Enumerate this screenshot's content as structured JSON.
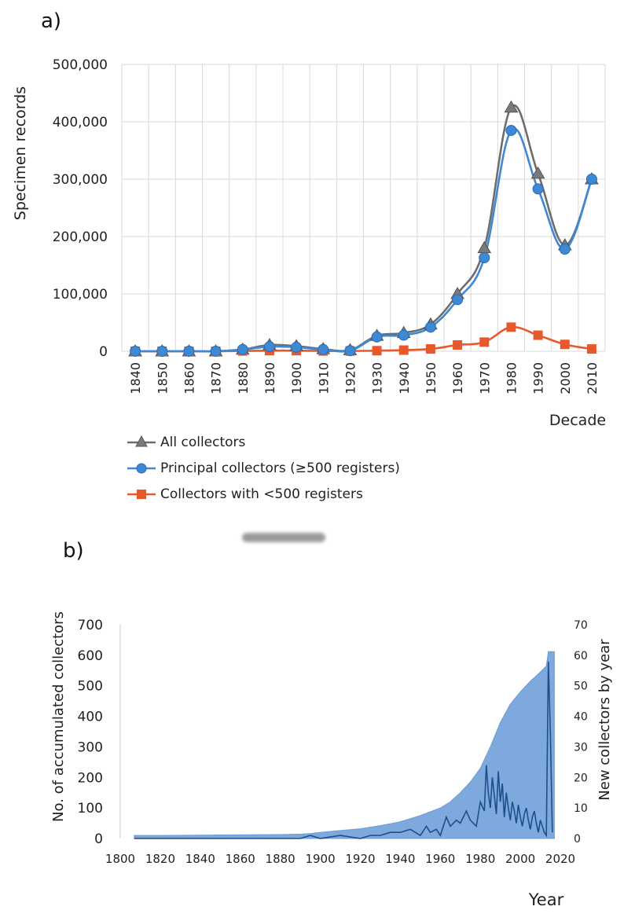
{
  "chart_data": [
    {
      "panel": "a)",
      "type": "line",
      "title": "",
      "xlabel": "Decade",
      "ylabel": "Specimen records",
      "ylim": [
        0,
        500000
      ],
      "yticks": [
        "500,000",
        "400,000",
        "300,000",
        "200,000",
        "100,000",
        "0"
      ],
      "grid": true,
      "categories": [
        "1840",
        "1850",
        "1860",
        "1870",
        "1880",
        "1890",
        "1900",
        "1910",
        "1920",
        "1930",
        "1940",
        "1950",
        "1960",
        "1970",
        "1980",
        "1990",
        "2000",
        "2010"
      ],
      "series": [
        {
          "name": "All collectors",
          "color": "#6d6d6d",
          "marker": "triangle",
          "values": [
            0,
            0,
            0,
            0,
            3000,
            11000,
            9000,
            4000,
            2000,
            27000,
            32000,
            47000,
            100000,
            180000,
            425000,
            310000,
            185000,
            300000
          ]
        },
        {
          "name": "Principal collectors (≥500 registers)",
          "color": "#3f88d3",
          "marker": "circle",
          "values": [
            0,
            0,
            0,
            0,
            3000,
            8000,
            7000,
            3000,
            1000,
            25000,
            28000,
            42000,
            90000,
            163000,
            385000,
            283000,
            178000,
            300000
          ]
        },
        {
          "name": "Collectors with <500 registers",
          "color": "#e8582a",
          "marker": "square",
          "values": [
            0,
            0,
            0,
            0,
            500,
            1000,
            1000,
            500,
            500,
            1000,
            2000,
            4000,
            11000,
            16000,
            42000,
            28000,
            12000,
            4000
          ]
        }
      ]
    },
    {
      "panel": "b)",
      "type": "area",
      "title": "",
      "xlabel": "Year",
      "ylabel": "No. of accumulated collectors",
      "ylabel_right": "New collectors by year",
      "xlim": [
        1800,
        2020
      ],
      "ylim": [
        0,
        700
      ],
      "ylim_right": [
        0,
        70
      ],
      "xticks": [
        "1800",
        "1820",
        "1840",
        "1860",
        "1880",
        "1900",
        "1920",
        "1940",
        "1960",
        "1980",
        "2000",
        "2020"
      ],
      "yticks": [
        "700",
        "600",
        "500",
        "400",
        "300",
        "200",
        "100",
        "0"
      ],
      "yticks_right": [
        "70",
        "60",
        "50",
        "40",
        "30",
        "20",
        "10",
        "0"
      ],
      "series": [
        {
          "name": "Accumulated collectors",
          "axis": "left",
          "kind": "area",
          "color": "#7ea9dd",
          "x": [
            1807,
            1820,
            1840,
            1860,
            1880,
            1890,
            1895,
            1900,
            1910,
            1920,
            1930,
            1940,
            1950,
            1960,
            1965,
            1970,
            1975,
            1980,
            1985,
            1990,
            1995,
            2000,
            2005,
            2010,
            2013,
            2014,
            2017
          ],
          "y": [
            10,
            10,
            11,
            12,
            13,
            14,
            16,
            20,
            26,
            32,
            42,
            55,
            75,
            100,
            120,
            150,
            185,
            230,
            300,
            380,
            440,
            480,
            515,
            545,
            565,
            612,
            612
          ]
        },
        {
          "name": "New collectors by year",
          "axis": "right",
          "kind": "line",
          "color": "#1f4e8c",
          "x": [
            1807,
            1850,
            1890,
            1895,
            1900,
            1910,
            1920,
            1925,
            1930,
            1935,
            1940,
            1945,
            1950,
            1953,
            1955,
            1958,
            1960,
            1963,
            1965,
            1968,
            1970,
            1973,
            1975,
            1978,
            1980,
            1982,
            1983,
            1984,
            1985,
            1986,
            1987,
            1988,
            1989,
            1990,
            1991,
            1992,
            1993,
            1994,
            1995,
            1996,
            1997,
            1998,
            1999,
            2000,
            2001,
            2002,
            2003,
            2004,
            2005,
            2006,
            2007,
            2008,
            2009,
            2010,
            2011,
            2012,
            2013,
            2014,
            2015,
            2016
          ],
          "y": [
            0,
            0,
            0,
            1,
            0,
            1,
            0,
            1,
            1,
            2,
            2,
            3,
            1,
            4,
            2,
            3,
            1,
            7,
            4,
            6,
            5,
            9,
            6,
            4,
            12,
            9,
            24,
            15,
            10,
            20,
            14,
            8,
            22,
            12,
            18,
            7,
            15,
            10,
            6,
            12,
            9,
            5,
            11,
            7,
            4,
            8,
            10,
            6,
            3,
            7,
            9,
            5,
            2,
            6,
            4,
            2,
            1,
            58,
            35,
            2
          ]
        }
      ]
    }
  ]
}
